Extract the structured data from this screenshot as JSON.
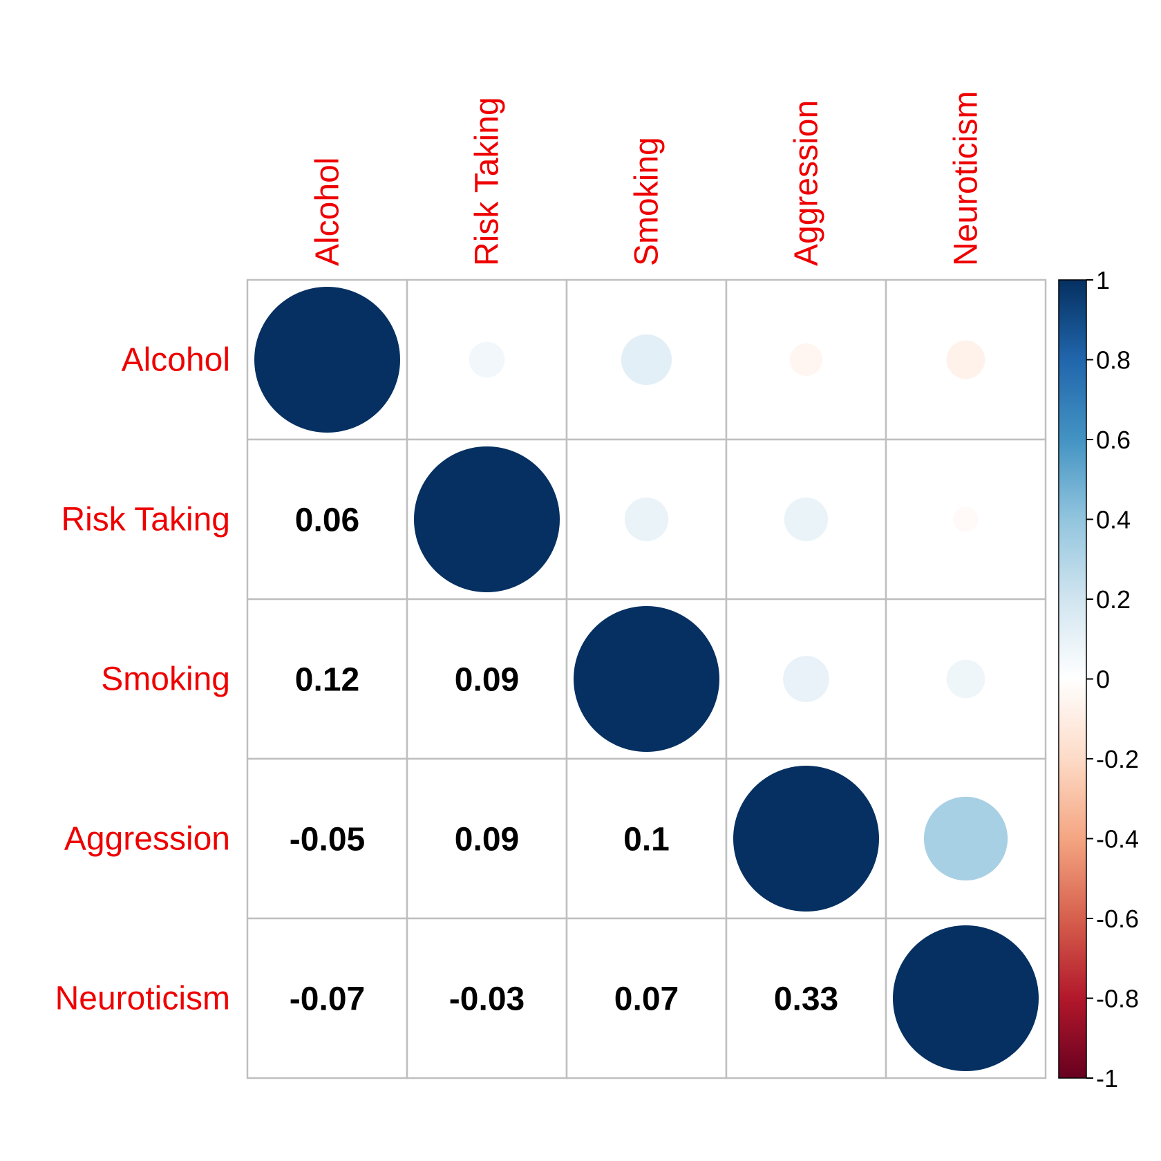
{
  "chart_data": {
    "type": "correlation-matrix",
    "variables": [
      "Alcohol",
      "Risk Taking",
      "Smoking",
      "Aggression",
      "Neuroticism"
    ],
    "matrix": [
      [
        1,
        0.06,
        0.12,
        -0.05,
        -0.07
      ],
      [
        0.06,
        1,
        0.09,
        0.09,
        -0.03
      ],
      [
        0.12,
        0.09,
        1,
        0.1,
        0.07
      ],
      [
        -0.05,
        0.09,
        0.1,
        1,
        0.33
      ],
      [
        -0.07,
        -0.03,
        0.07,
        0.33,
        1
      ]
    ],
    "lower_triangle": "numbers",
    "upper_triangle": "circles",
    "diagonal": "circles",
    "label_color": "#ee0000",
    "grid_color": "#bfbfbf",
    "colorbar": {
      "range": [
        -1,
        1
      ],
      "ticks": [
        1,
        0.8,
        0.6,
        0.4,
        0.2,
        0,
        -0.2,
        -0.4,
        -0.6,
        -0.8,
        -1
      ],
      "tick_labels": [
        "1",
        "0.8",
        "0.6",
        "0.4",
        "0.2",
        "0",
        "-0.2",
        "-0.4",
        "-0.6",
        "-0.8",
        "-1"
      ],
      "palette": [
        "#67001f",
        "#b2182b",
        "#d6604d",
        "#f4a582",
        "#fddbc7",
        "#ffffff",
        "#d1e5f0",
        "#92c5de",
        "#4393c3",
        "#2166ac",
        "#053061"
      ],
      "placement": "right"
    }
  }
}
